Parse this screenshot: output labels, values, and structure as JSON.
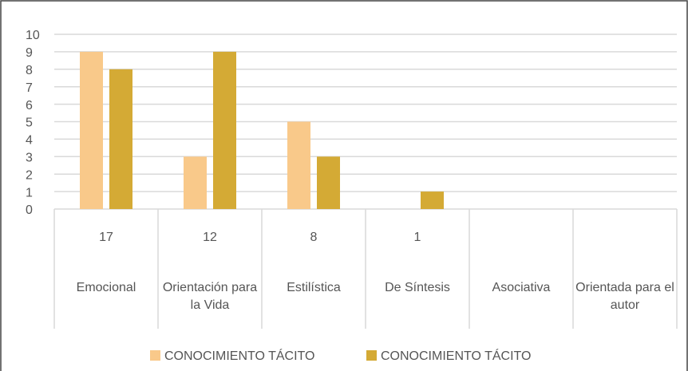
{
  "chart_data": {
    "type": "bar",
    "categories": [
      "Emocional",
      "Orientación para la Vida",
      "Estilística",
      "De Síntesis",
      "Asociativa",
      "Orientada para el autor"
    ],
    "category_totals": [
      17,
      12,
      8,
      1,
      null,
      null
    ],
    "series": [
      {
        "name": "CONOCIMIENTO TÁCITO",
        "color": "#f9c98a",
        "values": [
          9,
          3,
          5,
          0,
          0,
          0
        ]
      },
      {
        "name": "CONOCIMIENTO TÁCITO",
        "color": "#d4aa35",
        "values": [
          8,
          9,
          3,
          1,
          0,
          0
        ]
      }
    ],
    "ylim": [
      0,
      10
    ],
    "yticks": [
      0,
      1,
      2,
      3,
      4,
      5,
      6,
      7,
      8,
      9,
      10
    ],
    "grid": true,
    "legend": "bottom"
  }
}
